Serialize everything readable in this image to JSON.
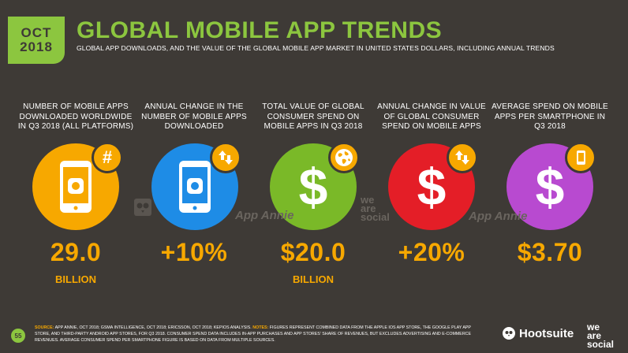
{
  "header": {
    "month": "OCT",
    "year": "2018",
    "title": "GLOBAL MOBILE APP TRENDS",
    "subtitle": "GLOBAL APP DOWNLOADS, AND THE VALUE OF THE GLOBAL MOBILE APP MARKET IN UNITED STATES DOLLARS, INCLUDING ANNUAL TRENDS"
  },
  "colors": {
    "background": "#3e3a36",
    "accent_green": "#8cc63f",
    "orange": "#f7a800",
    "blue": "#1e8ce6",
    "green": "#7ab928",
    "red": "#e41e27",
    "purple": "#b84ad0"
  },
  "stats": [
    {
      "label": "NUMBER OF MOBILE APPS DOWNLOADED WORLDWIDE IN Q3 2018 (ALL PLATFORMS)",
      "value": "29.0",
      "unit": "BILLION",
      "icon": "smartphone-app-icon",
      "badge_icon": "hash-icon"
    },
    {
      "label": "ANNUAL CHANGE IN THE NUMBER OF MOBILE APPS DOWNLOADED",
      "value": "+10%",
      "unit": "",
      "icon": "smartphone-app-icon",
      "badge_icon": "up-down-arrows-icon"
    },
    {
      "label": "TOTAL VALUE OF GLOBAL CONSUMER SPEND ON MOBILE APPS IN Q3 2018",
      "value": "$20.0",
      "unit": "BILLION",
      "icon": "dollar-icon",
      "badge_icon": "globe-icon"
    },
    {
      "label": "ANNUAL CHANGE IN VALUE OF GLOBAL CONSUMER SPEND ON MOBILE APPS",
      "value": "+20%",
      "unit": "",
      "icon": "dollar-icon",
      "badge_icon": "up-down-arrows-icon"
    },
    {
      "label": "AVERAGE SPEND ON MOBILE APPS PER SMARTPHONE IN Q3 2018",
      "value": "$3.70",
      "unit": "",
      "icon": "dollar-icon",
      "badge_icon": "smartphone-icon"
    }
  ],
  "watermarks": {
    "app_annie": "App Annie",
    "we_are_social": "we are social"
  },
  "footer": {
    "page_number": "55",
    "source_label": "SOURCE:",
    "source_text": "APP ANNIE, OCT 2018; GSMA INTELLIGENCE, OCT 2018; ERICSSON, OCT 2018; KEPIOS ANALYSIS.",
    "notes_label": "NOTES:",
    "notes_text": "FIGURES REPRESENT COMBINED DATA FROM THE APPLE IOS APP STORE, THE GOOGLE PLAY APP STORE, AND THIRD-PARTY ANDROID APP STORES, FOR Q3 2018. CONSUMER SPEND DATA INCLUDES IN-APP PURCHASES AND APP STORES' SHARE OF REVENUES, BUT EXCLUDES ADVERTISING AND E-COMMERCE REVENUES. AVERAGE CONSUMER SPEND PER SMARTPHONE FIGURE IS BASED ON DATA FROM MULTIPLE SOURCES.",
    "brand_hootsuite": "Hootsuite",
    "brand_we": "we",
    "brand_are": "are",
    "brand_social": "social"
  }
}
